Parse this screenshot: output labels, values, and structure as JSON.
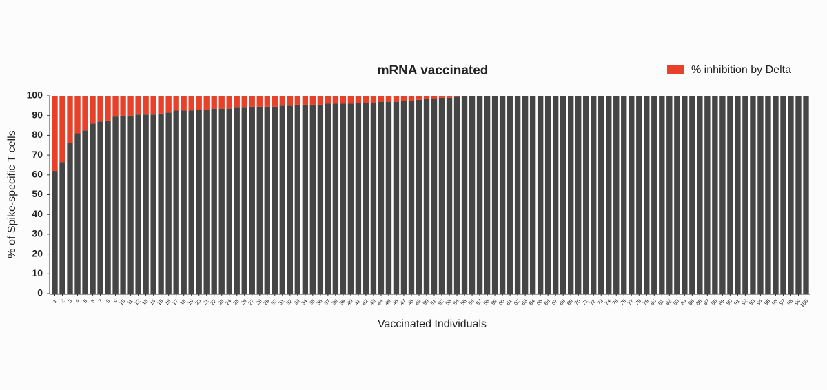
{
  "chart_data": {
    "type": "stacked_bar",
    "title": "mRNA vaccinated",
    "x_label": "Vaccinated Individuals",
    "y_label": "% of Spike-specific T cells",
    "categories": [
      "1",
      "2",
      "3",
      "4",
      "5",
      "6",
      "7",
      "8",
      "9",
      "10",
      "11",
      "12",
      "13",
      "14",
      "15",
      "16",
      "17",
      "18",
      "19",
      "20",
      "21",
      "22",
      "23",
      "24",
      "25",
      "26",
      "27",
      "28",
      "29",
      "30",
      "31",
      "32",
      "33",
      "34",
      "35",
      "36",
      "37",
      "38",
      "39",
      "40",
      "41",
      "42",
      "43",
      "44",
      "45",
      "46",
      "47",
      "48",
      "49",
      "50",
      "51",
      "52",
      "53",
      "54",
      "55",
      "56",
      "57",
      "58",
      "59",
      "60",
      "61",
      "62",
      "63",
      "64",
      "65",
      "66",
      "67",
      "68",
      "69",
      "70",
      "71",
      "72",
      "73",
      "74",
      "75",
      "76",
      "77",
      "78",
      "79",
      "80",
      "81",
      "82",
      "83",
      "84",
      "85",
      "86",
      "87",
      "88",
      "89",
      "90",
      "91",
      "92",
      "93",
      "94",
      "95",
      "96",
      "97",
      "98",
      "99",
      "100"
    ],
    "series": [
      {
        "color": "#454545",
        "values": [
          62,
          66.5,
          76,
          81,
          82.5,
          86,
          87,
          87.5,
          89.5,
          90,
          90,
          90.5,
          90.5,
          90.5,
          91,
          91.5,
          92.5,
          92.5,
          92.5,
          93,
          93,
          93.5,
          93.5,
          93.5,
          94,
          94,
          94.5,
          94.5,
          94.5,
          94.5,
          95,
          95,
          95.5,
          95.5,
          95.5,
          95.5,
          96,
          96,
          96,
          96,
          96.5,
          96.5,
          96.5,
          97,
          97,
          97,
          97.5,
          97.5,
          98,
          98.5,
          98.5,
          99,
          99,
          99.5,
          100,
          100,
          100,
          100,
          100,
          100,
          100,
          100,
          100,
          100,
          100,
          100,
          100,
          100,
          100,
          100,
          100,
          100,
          100,
          100,
          100,
          100,
          100,
          100,
          100,
          100,
          100,
          100,
          100,
          100,
          100,
          100,
          100,
          100,
          100,
          100,
          100,
          100,
          100,
          100,
          100,
          100,
          100,
          100,
          100,
          100
        ]
      },
      {
        "name": "% inhibition by Delta",
        "color": "#e8412a",
        "values": [
          38,
          33.5,
          24,
          19,
          17.5,
          14,
          13,
          12.5,
          10.5,
          10,
          10,
          9.5,
          9.5,
          9.5,
          9,
          8.5,
          7.5,
          7.5,
          7.5,
          7,
          7,
          6.5,
          6.5,
          6.5,
          6,
          6,
          5.5,
          5.5,
          5.5,
          5.5,
          5,
          5,
          4.5,
          4.5,
          4.5,
          4.5,
          4,
          4,
          4,
          4,
          3.5,
          3.5,
          3.5,
          3,
          3,
          3,
          2.5,
          2.5,
          2,
          1.5,
          1.5,
          1,
          1,
          0.5,
          0,
          0,
          0,
          0,
          0,
          0,
          0,
          0,
          0,
          0,
          0,
          0,
          0,
          0,
          0,
          0,
          0,
          0,
          0,
          0,
          0,
          0,
          0,
          0,
          0,
          0,
          0,
          0,
          0,
          0,
          0,
          0,
          0,
          0,
          0,
          0,
          0,
          0,
          0,
          0,
          0,
          0,
          0,
          0,
          0,
          0
        ]
      }
    ],
    "ylim": [
      0,
      100
    ],
    "yticks": [
      0,
      10,
      20,
      30,
      40,
      50,
      60,
      70,
      80,
      90,
      100
    ]
  }
}
